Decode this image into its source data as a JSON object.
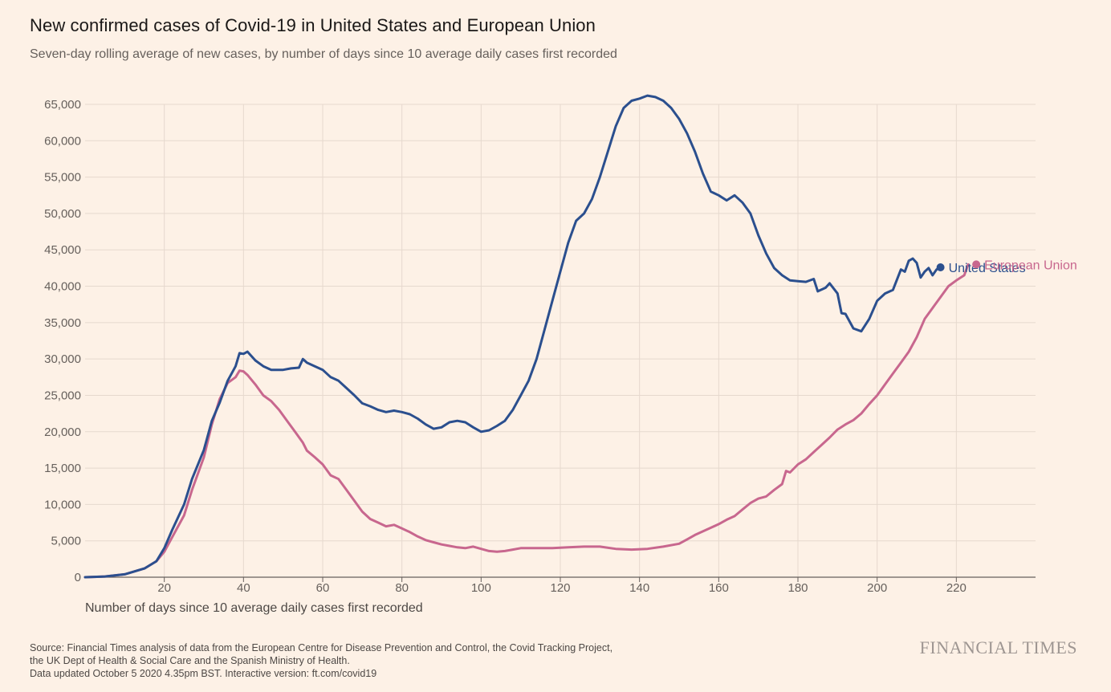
{
  "chart_data": {
    "type": "line",
    "title": "New confirmed cases of Covid-19 in United States and European Union",
    "subtitle": "Seven-day rolling average of new cases, by number of days since 10 average daily cases first recorded",
    "xlabel": "Number of days since 10 average daily cases first recorded",
    "ylabel": "",
    "xlim": [
      0,
      240
    ],
    "ylim": [
      0,
      65000
    ],
    "xticks": [
      20,
      40,
      60,
      80,
      100,
      120,
      140,
      160,
      180,
      200,
      220
    ],
    "yticks": [
      0,
      5000,
      10000,
      15000,
      20000,
      25000,
      30000,
      35000,
      40000,
      45000,
      50000,
      55000,
      60000,
      65000
    ],
    "grid": true,
    "series": [
      {
        "name": "United States",
        "color": "#2b4f8e",
        "points": [
          [
            0,
            0
          ],
          [
            5,
            100
          ],
          [
            10,
            400
          ],
          [
            15,
            1200
          ],
          [
            18,
            2200
          ],
          [
            20,
            4000
          ],
          [
            22,
            6500
          ],
          [
            25,
            10000
          ],
          [
            27,
            13500
          ],
          [
            30,
            17500
          ],
          [
            32,
            21500
          ],
          [
            34,
            24000
          ],
          [
            36,
            27000
          ],
          [
            38,
            29000
          ],
          [
            39,
            30800
          ],
          [
            40,
            30700
          ],
          [
            41,
            31000
          ],
          [
            43,
            29800
          ],
          [
            45,
            29000
          ],
          [
            47,
            28500
          ],
          [
            50,
            28500
          ],
          [
            52,
            28700
          ],
          [
            54,
            28800
          ],
          [
            55,
            30000
          ],
          [
            56,
            29500
          ],
          [
            58,
            29000
          ],
          [
            60,
            28500
          ],
          [
            62,
            27500
          ],
          [
            64,
            27000
          ],
          [
            66,
            26000
          ],
          [
            68,
            25000
          ],
          [
            70,
            23900
          ],
          [
            72,
            23500
          ],
          [
            74,
            23000
          ],
          [
            76,
            22700
          ],
          [
            78,
            22900
          ],
          [
            80,
            22700
          ],
          [
            82,
            22400
          ],
          [
            84,
            21800
          ],
          [
            86,
            21000
          ],
          [
            88,
            20400
          ],
          [
            90,
            20600
          ],
          [
            92,
            21300
          ],
          [
            94,
            21500
          ],
          [
            96,
            21300
          ],
          [
            98,
            20600
          ],
          [
            100,
            20000
          ],
          [
            102,
            20200
          ],
          [
            104,
            20800
          ],
          [
            106,
            21500
          ],
          [
            108,
            23000
          ],
          [
            110,
            25000
          ],
          [
            112,
            27000
          ],
          [
            114,
            30000
          ],
          [
            116,
            34000
          ],
          [
            118,
            38000
          ],
          [
            120,
            42000
          ],
          [
            122,
            46000
          ],
          [
            124,
            49000
          ],
          [
            126,
            50000
          ],
          [
            128,
            52000
          ],
          [
            130,
            55000
          ],
          [
            132,
            58500
          ],
          [
            134,
            62000
          ],
          [
            136,
            64500
          ],
          [
            138,
            65500
          ],
          [
            140,
            65800
          ],
          [
            142,
            66200
          ],
          [
            144,
            66000
          ],
          [
            146,
            65500
          ],
          [
            148,
            64500
          ],
          [
            150,
            63000
          ],
          [
            152,
            61000
          ],
          [
            154,
            58500
          ],
          [
            156,
            55500
          ],
          [
            158,
            53000
          ],
          [
            160,
            52500
          ],
          [
            162,
            51800
          ],
          [
            164,
            52500
          ],
          [
            166,
            51500
          ],
          [
            168,
            50000
          ],
          [
            170,
            47000
          ],
          [
            172,
            44500
          ],
          [
            174,
            42500
          ],
          [
            176,
            41500
          ],
          [
            178,
            40800
          ],
          [
            180,
            40700
          ],
          [
            182,
            40600
          ],
          [
            184,
            41000
          ],
          [
            185,
            39300
          ],
          [
            187,
            39800
          ],
          [
            188,
            40400
          ],
          [
            190,
            39000
          ],
          [
            191,
            36300
          ],
          [
            192,
            36200
          ],
          [
            194,
            34200
          ],
          [
            196,
            33800
          ],
          [
            198,
            35500
          ],
          [
            200,
            38000
          ],
          [
            202,
            39000
          ],
          [
            204,
            39500
          ],
          [
            206,
            42300
          ],
          [
            207,
            42000
          ],
          [
            208,
            43500
          ],
          [
            209,
            43800
          ],
          [
            210,
            43200
          ],
          [
            211,
            41200
          ],
          [
            212,
            42000
          ],
          [
            213,
            42500
          ],
          [
            214,
            41500
          ],
          [
            215,
            42300
          ],
          [
            216,
            42600
          ]
        ]
      },
      {
        "name": "European Union",
        "color": "#c8678e",
        "points": [
          [
            0,
            0
          ],
          [
            5,
            100
          ],
          [
            10,
            400
          ],
          [
            15,
            1200
          ],
          [
            18,
            2200
          ],
          [
            20,
            3500
          ],
          [
            22,
            5500
          ],
          [
            25,
            8500
          ],
          [
            27,
            12000
          ],
          [
            30,
            16500
          ],
          [
            32,
            21000
          ],
          [
            34,
            24500
          ],
          [
            36,
            26700
          ],
          [
            38,
            27500
          ],
          [
            39,
            28400
          ],
          [
            40,
            28300
          ],
          [
            41,
            27800
          ],
          [
            43,
            26500
          ],
          [
            45,
            25000
          ],
          [
            47,
            24200
          ],
          [
            49,
            23000
          ],
          [
            51,
            21500
          ],
          [
            53,
            20000
          ],
          [
            55,
            18500
          ],
          [
            56,
            17400
          ],
          [
            58,
            16500
          ],
          [
            60,
            15500
          ],
          [
            62,
            14000
          ],
          [
            64,
            13500
          ],
          [
            66,
            12000
          ],
          [
            68,
            10500
          ],
          [
            70,
            9000
          ],
          [
            72,
            8000
          ],
          [
            74,
            7500
          ],
          [
            76,
            7000
          ],
          [
            78,
            7200
          ],
          [
            80,
            6700
          ],
          [
            82,
            6200
          ],
          [
            84,
            5600
          ],
          [
            86,
            5100
          ],
          [
            88,
            4800
          ],
          [
            90,
            4500
          ],
          [
            92,
            4300
          ],
          [
            94,
            4100
          ],
          [
            96,
            4000
          ],
          [
            98,
            4200
          ],
          [
            100,
            3900
          ],
          [
            102,
            3600
          ],
          [
            104,
            3500
          ],
          [
            106,
            3600
          ],
          [
            108,
            3800
          ],
          [
            110,
            4000
          ],
          [
            114,
            4000
          ],
          [
            118,
            4000
          ],
          [
            122,
            4100
          ],
          [
            126,
            4200
          ],
          [
            130,
            4200
          ],
          [
            134,
            3900
          ],
          [
            138,
            3800
          ],
          [
            142,
            3900
          ],
          [
            146,
            4200
          ],
          [
            150,
            4600
          ],
          [
            152,
            5200
          ],
          [
            154,
            5800
          ],
          [
            156,
            6300
          ],
          [
            158,
            6800
          ],
          [
            160,
            7300
          ],
          [
            162,
            7900
          ],
          [
            164,
            8400
          ],
          [
            166,
            9300
          ],
          [
            168,
            10200
          ],
          [
            170,
            10800
          ],
          [
            172,
            11100
          ],
          [
            174,
            12000
          ],
          [
            176,
            12800
          ],
          [
            177,
            14600
          ],
          [
            178,
            14400
          ],
          [
            180,
            15500
          ],
          [
            182,
            16200
          ],
          [
            184,
            17200
          ],
          [
            186,
            18200
          ],
          [
            188,
            19200
          ],
          [
            190,
            20300
          ],
          [
            192,
            21000
          ],
          [
            194,
            21600
          ],
          [
            196,
            22500
          ],
          [
            198,
            23800
          ],
          [
            200,
            25000
          ],
          [
            202,
            26500
          ],
          [
            204,
            28000
          ],
          [
            206,
            29500
          ],
          [
            208,
            31000
          ],
          [
            210,
            33000
          ],
          [
            212,
            35500
          ],
          [
            214,
            37000
          ],
          [
            216,
            38500
          ],
          [
            218,
            40000
          ],
          [
            220,
            40800
          ],
          [
            222,
            41500
          ],
          [
            223,
            43000
          ]
        ]
      }
    ]
  },
  "source": {
    "line1": "Source: Financial Times analysis of data from the European Centre for Disease Prevention and Control, the Covid Tracking Project,",
    "line2": "the UK Dept of Health & Social Care and the Spanish Ministry of Health.",
    "line3": "Data updated October 5 2020 4.35pm BST. Interactive version: ft.com/covid19"
  },
  "brand": "FINANCIAL TIMES"
}
